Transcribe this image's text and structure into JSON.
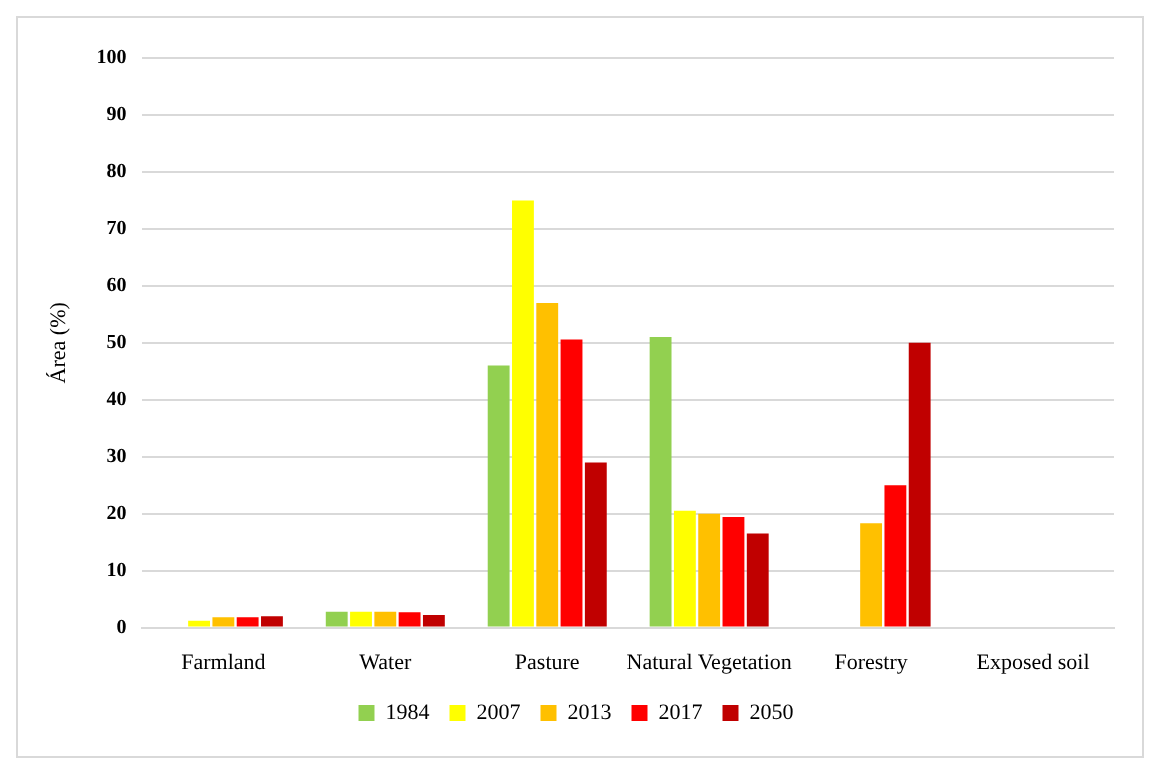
{
  "chart_data": {
    "type": "bar",
    "ylabel": "Área (%)",
    "categories": [
      "Farmland",
      "Water",
      "Pasture",
      "Natural Vegetation",
      "Forestry",
      "Exposed soil"
    ],
    "series": [
      {
        "name": "1984",
        "color": "#92d050",
        "values": [
          0,
          2.8,
          46,
          51,
          0,
          0
        ]
      },
      {
        "name": "2007",
        "color": "#ffff00",
        "values": [
          1.2,
          2.8,
          75,
          20.5,
          0,
          0
        ]
      },
      {
        "name": "2013",
        "color": "#ffc000",
        "values": [
          1.8,
          2.8,
          57,
          20,
          18.3,
          0
        ]
      },
      {
        "name": "2017",
        "color": "#ff0000",
        "values": [
          1.8,
          2.7,
          50.6,
          19.4,
          25,
          0
        ]
      },
      {
        "name": "2050",
        "color": "#c00000",
        "values": [
          2,
          2.2,
          29,
          16.5,
          50,
          0
        ]
      }
    ],
    "ylim": [
      0,
      100
    ],
    "yticks": [
      0,
      10,
      20,
      30,
      40,
      50,
      60,
      70,
      80,
      90,
      100
    ],
    "grid": "y",
    "legend": "bottom"
  }
}
